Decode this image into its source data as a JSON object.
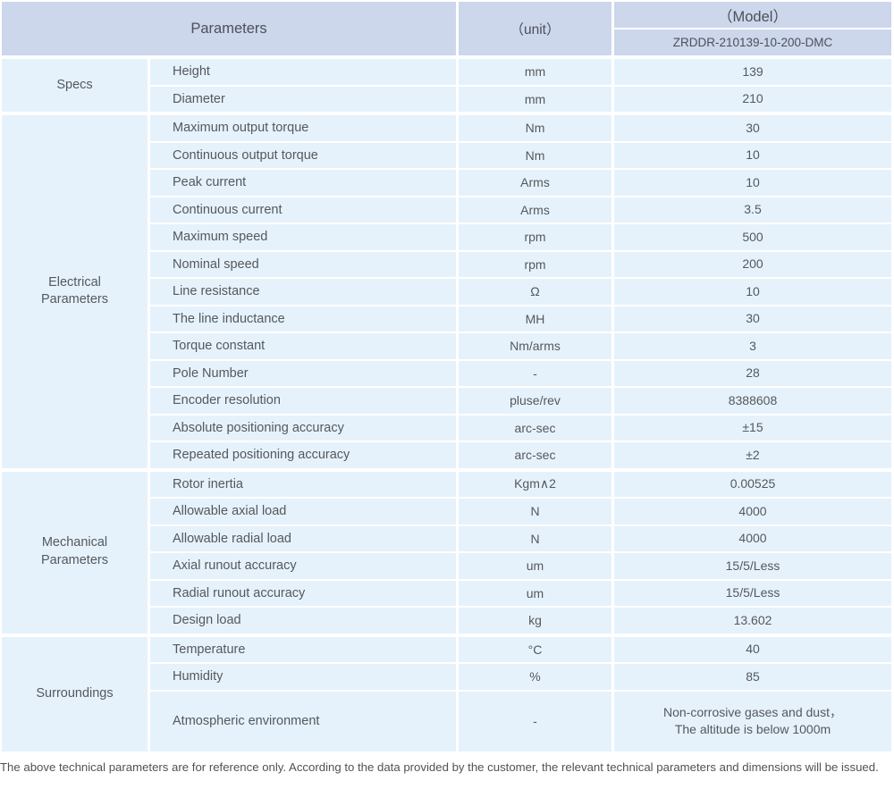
{
  "table": {
    "header": {
      "parameters_label": "Parameters",
      "unit_label": "（unit）",
      "model_label": "（Model）",
      "model_value": "ZRDDR-210139-10-200-DMC"
    },
    "groups": [
      {
        "name": "Specs",
        "rows": [
          {
            "parameter": "Height",
            "unit": "mm",
            "value": "139"
          },
          {
            "parameter": "Diameter",
            "unit": "mm",
            "value": "210"
          }
        ]
      },
      {
        "name": "Electrical\nParameters",
        "rows": [
          {
            "parameter": "Maximum output torque",
            "unit": "Nm",
            "value": "30"
          },
          {
            "parameter": "Continuous output torque",
            "unit": "Nm",
            "value": "10"
          },
          {
            "parameter": "Peak current",
            "unit": "Arms",
            "value": "10"
          },
          {
            "parameter": "Continuous current",
            "unit": "Arms",
            "value": "3.5"
          },
          {
            "parameter": "Maximum speed",
            "unit": "rpm",
            "value": "500"
          },
          {
            "parameter": "Nominal speed",
            "unit": "rpm",
            "value": "200"
          },
          {
            "parameter": "Line resistance",
            "unit": "Ω",
            "value": "10"
          },
          {
            "parameter": "The line inductance",
            "unit": "MH",
            "value": "30"
          },
          {
            "parameter": "Torque constant",
            "unit": "Nm/arms",
            "value": "3"
          },
          {
            "parameter": "Pole Number",
            "unit": "-",
            "value": "28"
          },
          {
            "parameter": "Encoder resolution",
            "unit": "pluse/rev",
            "value": "8388608"
          },
          {
            "parameter": "Absolute positioning accuracy",
            "unit": "arc-sec",
            "value": "±15"
          },
          {
            "parameter": "Repeated positioning accuracy",
            "unit": "arc-sec",
            "value": "±2"
          }
        ]
      },
      {
        "name": "Mechanical\nParameters",
        "rows": [
          {
            "parameter": "Rotor inertia",
            "unit": "Kgm∧2",
            "value": "0.00525"
          },
          {
            "parameter": "Allowable axial load",
            "unit": "N",
            "value": "4000"
          },
          {
            "parameter": "Allowable radial load",
            "unit": "N",
            "value": "4000"
          },
          {
            "parameter": "Axial runout accuracy",
            "unit": "um",
            "value": "15/5/Less"
          },
          {
            "parameter": "Radial runout accuracy",
            "unit": "um",
            "value": "15/5/Less"
          },
          {
            "parameter": "Design load",
            "unit": "kg",
            "value": "13.602"
          }
        ]
      },
      {
        "name": "Surroundings",
        "rows": [
          {
            "parameter": "Temperature",
            "unit": "°C",
            "value": "40"
          },
          {
            "parameter": "Humidity",
            "unit": "%",
            "value": "85"
          },
          {
            "parameter": "Atmospheric environment",
            "unit": "-",
            "value": "Non-corrosive gases and dust，\nThe altitude is below 1000m",
            "tall": true
          }
        ]
      }
    ]
  },
  "footer": {
    "note": "The above technical parameters are for reference only. According to the data provided by the customer, the relevant technical parameters and dimensions will be issued."
  },
  "colors": {
    "header_bg": "#ccd7ec",
    "body_bg": "#e6f2fb",
    "text": "#54585e",
    "note_text": "#4f5257"
  }
}
